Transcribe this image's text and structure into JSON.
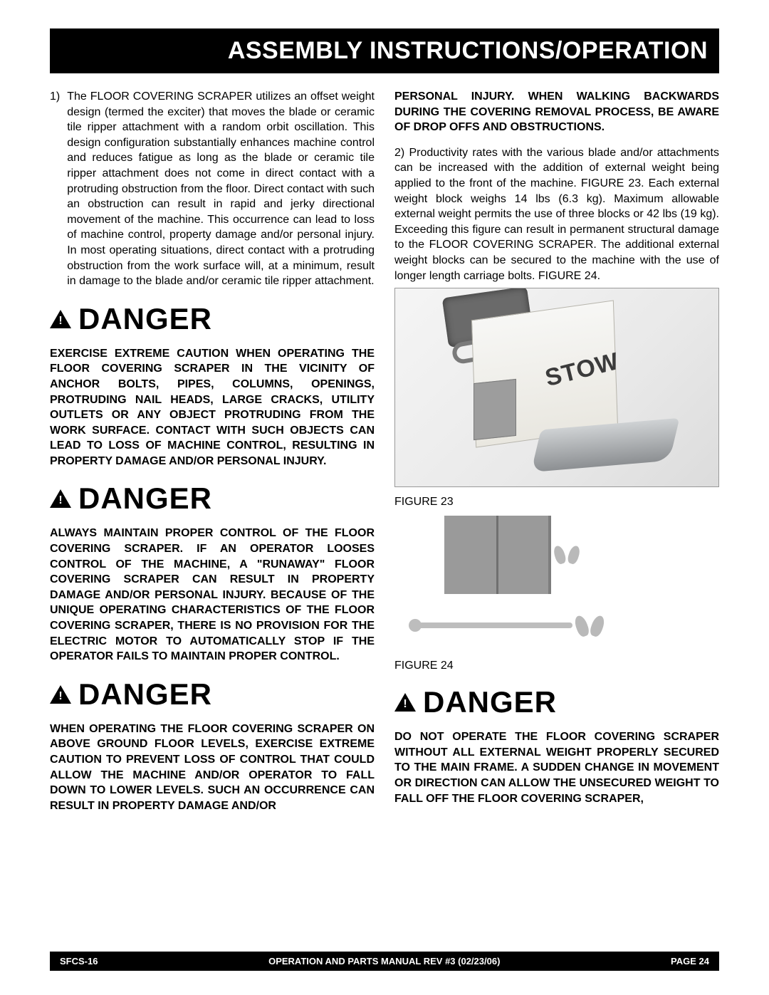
{
  "header": {
    "title": "ASSEMBLY INSTRUCTIONS/OPERATION"
  },
  "left": {
    "para1_num": "1)",
    "para1": "The FLOOR COVERING SCRAPER utilizes an offset weight design (termed the exciter) that moves the blade or ceramic tile ripper attachment with a random orbit oscillation. This design configuration substantially enhances machine control and reduces fatigue as long as the blade or ceramic tile ripper attachment does not come in direct contact with a protruding obstruction from the floor. Direct contact with such an obstruction can result in rapid and jerky directional movement of the machine.  This occurrence can lead to loss of machine control, property damage and/or personal injury. In most operating situations, direct contact with a protruding obstruction from the work surface will, at a minimum, result in damage to the blade and/or ceramic tile ripper attachment.",
    "danger_word": "DANGER",
    "warn1": "EXERCISE EXTREME CAUTION WHEN OPERATING THE FLOOR COVERING SCRAPER IN THE VICINITY OF ANCHOR BOLTS, PIPES, COLUMNS, OPENINGS, PROTRUDING NAIL HEADS, LARGE CRACKS, UTILITY OUTLETS OR ANY OBJECT PROTRUDING FROM THE WORK SURFACE. CONTACT WITH SUCH OBJECTS CAN LEAD TO LOSS OF MACHINE CONTROL, RESULTING IN PROPERTY DAMAGE AND/OR PERSONAL INJURY.",
    "warn2": "ALWAYS MAINTAIN PROPER CONTROL OF THE FLOOR COVERING SCRAPER. IF AN OPERATOR LOOSES CONTROL OF THE MACHINE, A \"RUNAWAY\" FLOOR COVERING SCRAPER CAN RESULT IN PROPERTY DAMAGE AND/OR PERSONAL INJURY. BECAUSE OF THE UNIQUE OPERATING CHARACTERISTICS OF THE FLOOR COVERING SCRAPER, THERE IS NO PROVISION FOR THE ELECTRIC MOTOR TO AUTOMATICALLY STOP IF THE OPERATOR FAILS TO MAINTAIN PROPER CONTROL.",
    "warn3": "WHEN OPERATING THE FLOOR COVERING SCRAPER ON ABOVE GROUND FLOOR LEVELS, EXERCISE EXTREME CAUTION TO PREVENT LOSS OF CONTROL THAT COULD ALLOW THE MACHINE AND/OR OPERATOR TO FALL DOWN TO LOWER LEVELS. SUCH AN OCCURRENCE CAN RESULT IN PROPERTY DAMAGE AND/OR"
  },
  "right": {
    "warn3b": "PERSONAL INJURY. WHEN WALKING BACKWARDS DURING THE COVERING REMOVAL PROCESS, BE AWARE OF DROP OFFS AND OBSTRUCTIONS.",
    "para2_num": "2)",
    "para2": "Productivity rates with the various blade and/or attachments can be increased with the addition of external weight being applied to the front of the machine. FIGURE 23. Each external weight block weighs 14 lbs (6.3 kg). Maximum allowable external weight permits the use of three blocks or 42 lbs (19 kg). Exceeding this figure can result in permanent structural damage to the FLOOR COVERING SCRAPER. The additional external weight blocks can be secured to the machine with the use of longer length carriage bolts. FIGURE 24.",
    "fig23_brand": "STOW",
    "fig23_label": "FIGURE 23",
    "fig24_label": "FIGURE 24",
    "danger_word": "DANGER",
    "warn4": "DO NOT OPERATE THE FLOOR COVERING SCRAPER WITHOUT ALL EXTERNAL WEIGHT PROPERLY SECURED TO THE MAIN FRAME. A SUDDEN CHANGE IN MOVEMENT OR DIRECTION CAN ALLOW THE UNSECURED WEIGHT TO FALL OFF THE FLOOR COVERING SCRAPER,"
  },
  "footer": {
    "left": "SFCS-16",
    "center": "OPERATION AND PARTS MANUAL REV #3 (02/23/06)",
    "right": "PAGE 24"
  },
  "colors": {
    "header_bg": "#000000",
    "header_fg": "#ffffff",
    "page_bg": "#ffffff",
    "text": "#000000",
    "fig_gray": "#9a9a9a"
  }
}
